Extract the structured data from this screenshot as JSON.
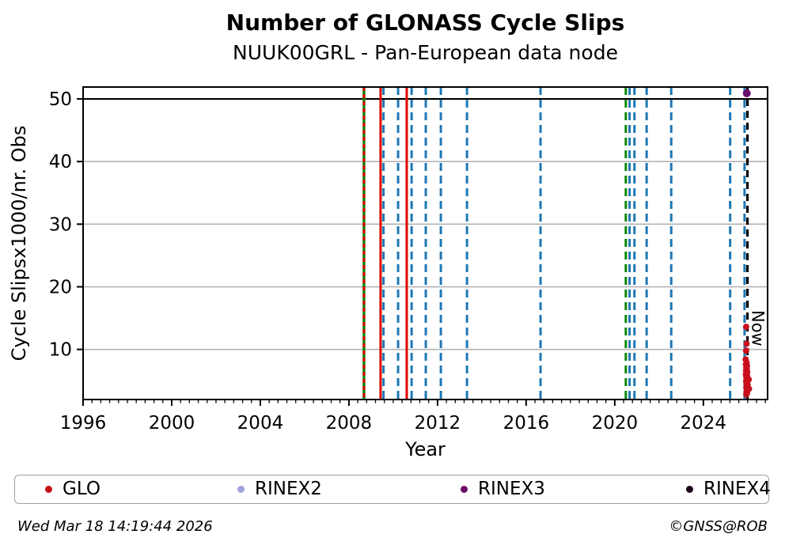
{
  "header": {
    "title": "Number of GLONASS Cycle Slips",
    "subtitle": "NUUK00GRL - Pan-European data node"
  },
  "footer": {
    "timestamp": "Wed Mar 18 14:19:44 2026",
    "credit": "©GNSS@ROB"
  },
  "legend": {
    "items": [
      {
        "label": "GLO",
        "color": "#c41015"
      },
      {
        "label": "RINEX2",
        "color": "#a2a2dd"
      },
      {
        "label": "RINEX3",
        "color": "#6a0c6a"
      },
      {
        "label": "RINEX4",
        "color": "#1b031b"
      }
    ]
  },
  "chart_data": {
    "type": "scatter",
    "title": "Number of GLONASS Cycle Slips",
    "subtitle": "NUUK00GRL - Pan-European data node",
    "xlabel": "Year",
    "ylabel": "Cycle Slipsx1000/nr. Obs",
    "xlim": [
      1996,
      2026.9
    ],
    "ylim": [
      2.0,
      51.9
    ],
    "xticks": [
      1996,
      2000,
      2004,
      2008,
      2012,
      2016,
      2020,
      2024
    ],
    "minor_tick_step_years": 0.4,
    "yticks": [
      10,
      20,
      30,
      40,
      50
    ],
    "grid": "horizontal",
    "grid_color": "#b3b3b3",
    "hline": {
      "y": 50,
      "color": "#000000",
      "width": 2.2
    },
    "event_lines": [
      {
        "year": 2008.68,
        "color": "#0a870a",
        "style": "solid",
        "width": 3.5
      },
      {
        "year": 2008.68,
        "color": "#dd0000",
        "style": "dashed",
        "dash": "5 4",
        "width": 3
      },
      {
        "year": 2009.43,
        "color": "#dd0000",
        "style": "solid",
        "width": 3
      },
      {
        "year": 2009.56,
        "color": "#1f77b4",
        "style": "dashed"
      },
      {
        "year": 2010.22,
        "color": "#1f77b4",
        "style": "dashed"
      },
      {
        "year": 2010.61,
        "color": "#dd0000",
        "style": "solid",
        "width": 3
      },
      {
        "year": 2010.83,
        "color": "#1f77b4",
        "style": "dashed"
      },
      {
        "year": 2011.47,
        "color": "#1f77b4",
        "style": "dashed"
      },
      {
        "year": 2012.15,
        "color": "#1f77b4",
        "style": "dashed"
      },
      {
        "year": 2013.33,
        "color": "#1f77b4",
        "style": "dashed"
      },
      {
        "year": 2016.65,
        "color": "#1f77b4",
        "style": "dashed"
      },
      {
        "year": 2020.5,
        "color": "#0a870a",
        "style": "dashed"
      },
      {
        "year": 2020.67,
        "color": "#1f77b4",
        "style": "dashed"
      },
      {
        "year": 2020.89,
        "color": "#1f77b4",
        "style": "dashed"
      },
      {
        "year": 2021.44,
        "color": "#1f77b4",
        "style": "dashed"
      },
      {
        "year": 2022.55,
        "color": "#1f77b4",
        "style": "dashed"
      },
      {
        "year": 2025.21,
        "color": "#1f77b4",
        "style": "dashed"
      },
      {
        "year": 2025.86,
        "color": "#1f77b4",
        "style": "dashed"
      }
    ],
    "now_line": {
      "year": 2025.99,
      "label": "Now",
      "color": "#000000",
      "style": "dashed",
      "width": 3.2
    },
    "series": [
      {
        "name": "GLO",
        "color": "#c8101e",
        "marker_radius": 4,
        "points": [
          [
            2025.93,
            13.6
          ],
          [
            2025.95,
            10.9
          ],
          [
            2025.93,
            9.8
          ],
          [
            2025.91,
            8.4
          ],
          [
            2025.95,
            7.9
          ],
          [
            2025.92,
            7.6
          ],
          [
            2025.97,
            7.4
          ],
          [
            2025.94,
            7.1
          ],
          [
            2025.96,
            6.9
          ],
          [
            2025.93,
            6.6
          ],
          [
            2025.98,
            6.4
          ],
          [
            2025.95,
            6.2
          ],
          [
            2025.92,
            6.0
          ],
          [
            2025.97,
            5.8
          ],
          [
            2025.94,
            5.6
          ],
          [
            2025.99,
            5.4
          ],
          [
            2026.05,
            5.2
          ],
          [
            2025.96,
            5.1
          ],
          [
            2025.93,
            4.9
          ],
          [
            2025.98,
            4.7
          ],
          [
            2025.95,
            4.5
          ],
          [
            2026.0,
            4.3
          ],
          [
            2025.97,
            4.1
          ],
          [
            2025.94,
            3.9
          ],
          [
            2026.06,
            3.7
          ],
          [
            2025.96,
            3.6
          ],
          [
            2025.99,
            3.4
          ],
          [
            2025.95,
            3.2
          ],
          [
            2025.97,
            3.0
          ],
          [
            2025.94,
            2.8
          ]
        ]
      },
      {
        "name": "RINEX2",
        "color": "#a2a2dd",
        "marker_radius": 4,
        "points": []
      },
      {
        "name": "RINEX3",
        "color": "#6a0c6a",
        "marker_radius": 5,
        "points": [
          [
            2025.96,
            50.9
          ]
        ]
      },
      {
        "name": "RINEX4",
        "color": "#1b031b",
        "marker_radius": 4,
        "points": []
      }
    ],
    "legend_position": "bottom",
    "legend_entries": [
      "GLO",
      "RINEX2",
      "RINEX3",
      "RINEX4"
    ]
  }
}
